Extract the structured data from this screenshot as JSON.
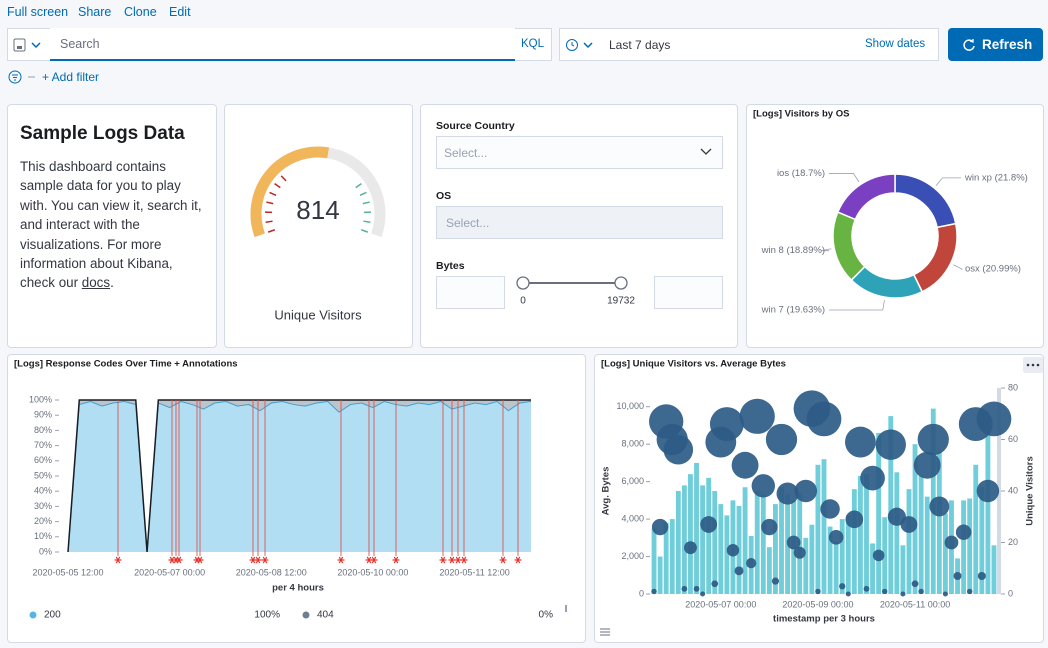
{
  "nav": [
    "Full screen",
    "Share",
    "Clone",
    "Edit"
  ],
  "query": {
    "placeholder": "Search",
    "language": "KQL"
  },
  "time": {
    "range": "Last 7 days",
    "toggle": "Show dates"
  },
  "refresh": "Refresh",
  "add_filter": "+ Add filter",
  "markdown": {
    "title": "Sample Logs Data",
    "text": "This dashboard contains sample data for you to play with. You can view it, search it, and interact with the visualizations. For more information about Kibana, check our ",
    "link": "docs",
    "end": "."
  },
  "gauge": {
    "value": 814,
    "label": "Unique Visitors",
    "range": [
      0,
      1500
    ]
  },
  "controls": {
    "country": {
      "label": "Source Country",
      "placeholder": "Select..."
    },
    "os": {
      "label": "OS",
      "placeholder": "Select..."
    },
    "bytes": {
      "label": "Bytes",
      "min": 0,
      "max": 19732
    }
  },
  "chart_data": [
    {
      "type": "area",
      "title": "[Logs] Response Codes Over Time + Annotations",
      "x_label": "per 4 hours",
      "categories": [
        "2020-05-05 12:00",
        null,
        null,
        null,
        null,
        null,
        null,
        null,
        null,
        "2020-05-07 00:00",
        null,
        null,
        null,
        null,
        null,
        null,
        null,
        null,
        "2020-05-08 12:00",
        null,
        null,
        null,
        null,
        null,
        null,
        null,
        null,
        "2020-05-10 00:00",
        null,
        null,
        null,
        null,
        null,
        null,
        null,
        null,
        "2020-05-11 12:00",
        null,
        null,
        null,
        null,
        null
      ],
      "series": [
        {
          "name": "200",
          "color": "#54b5e6",
          "line_color": "#3aa7dc",
          "legend_value": {
            "value": 100,
            "label": "100%"
          },
          "values": [
            0,
            97,
            99,
            96,
            98,
            99,
            97,
            0,
            98,
            95,
            99,
            97,
            94,
            98,
            99,
            96,
            97,
            93,
            98,
            99,
            97,
            96,
            98,
            99,
            92,
            97,
            98,
            95,
            99,
            97,
            96,
            98,
            97,
            99,
            94,
            96,
            98,
            97,
            99,
            93,
            98,
            99
          ]
        },
        {
          "name": "404",
          "color": "#6d7f8f",
          "line_color": "#1a1c21",
          "legend_value": {
            "value": 0,
            "label": "0%"
          },
          "values": [
            0,
            3,
            1,
            4,
            2,
            1,
            3,
            0,
            2,
            5,
            1,
            3,
            6,
            2,
            1,
            4,
            3,
            7,
            2,
            1,
            3,
            4,
            2,
            1,
            8,
            3,
            2,
            5,
            1,
            3,
            4,
            2,
            3,
            1,
            6,
            4,
            2,
            3,
            1,
            7,
            2,
            1
          ]
        }
      ],
      "ylim": [
        0,
        100
      ],
      "yticks": [
        {
          "value": 0,
          "label": "0%"
        },
        {
          "value": 10,
          "label": "10%"
        },
        {
          "value": 20,
          "label": "20%"
        },
        {
          "value": 30,
          "label": "30%"
        },
        {
          "value": 40,
          "label": "40%"
        },
        {
          "value": 50,
          "label": "50%"
        },
        {
          "value": 60,
          "label": "60%"
        },
        {
          "value": 70,
          "label": "70%"
        },
        {
          "value": 80,
          "label": "80%"
        },
        {
          "value": 90,
          "label": "90%"
        },
        {
          "value": 100,
          "label": "100%"
        }
      ],
      "stacked": true
    },
    {
      "type": "pie",
      "title": "[Logs] Visitors by OS",
      "donut": true,
      "values": [
        21.8,
        20.99,
        19.63,
        18.89,
        18.7
      ],
      "value_labels": [
        "win xp (21.8%)",
        "osx (20.99%)",
        "win 7 (19.63%)",
        "win 8 (18.89%)",
        "ios (18.7%)"
      ],
      "colors": [
        "#3a4fb5",
        "#c0453a",
        "#2ea3b8",
        "#67b443",
        "#7b3fc2"
      ]
    },
    {
      "type": "bar",
      "title": "[Logs] Unique Visitors vs. Average Bytes",
      "x_label": "timestamp per 3 hours",
      "y_label": "Avg. Bytes",
      "y2_label": "Unique Visitors",
      "categories": [
        null,
        null,
        null,
        null,
        null,
        null,
        null,
        null,
        null,
        null,
        null,
        "2020-05-07 00:00",
        null,
        null,
        null,
        null,
        null,
        null,
        null,
        null,
        null,
        null,
        null,
        null,
        null,
        null,
        null,
        "2020-05-09 00:00",
        null,
        null,
        null,
        null,
        null,
        null,
        null,
        null,
        null,
        null,
        null,
        null,
        null,
        null,
        null,
        "2020-05-11 00:00",
        null,
        null,
        null,
        null,
        null,
        null,
        null,
        null,
        null,
        null,
        null,
        null,
        null
      ],
      "series": [
        {
          "color": "#70cedb",
          "values": [
            3500,
            2000,
            3800,
            4000,
            5500,
            5800,
            6400,
            7000,
            5800,
            6200,
            5500,
            4800,
            4200,
            5000,
            4700,
            5700,
            3100,
            5500,
            5300,
            2500,
            4800,
            5700,
            5300,
            5000,
            5400,
            3000,
            3700,
            6900,
            7200,
            3600,
            2800,
            4000,
            4200,
            5600,
            6300,
            6400,
            2700,
            8600,
            4100,
            9500,
            6500,
            2600,
            5600,
            8000,
            6300,
            5200,
            9900,
            7600,
            4300,
            5000,
            1900,
            5000,
            5100,
            6900,
            5700,
            8600,
            2600
          ]
        },
        {
          "color": "#2d5b86",
          "axis": "y2",
          "mark": "bubble",
          "values": [
            1,
            26,
            67,
            60,
            56,
            2,
            18,
            2,
            0,
            27,
            4,
            59,
            66,
            17,
            9,
            50,
            12,
            69,
            42,
            26,
            5,
            60,
            39,
            20,
            16,
            40,
            72,
            1,
            68,
            33,
            22,
            3,
            0,
            29,
            59,
            2,
            45,
            15,
            1,
            58,
            30,
            0,
            27,
            4,
            1,
            50,
            60,
            34,
            0,
            20,
            7,
            24,
            1,
            66,
            7,
            40,
            68
          ]
        }
      ],
      "ylim": [
        0,
        11000
      ],
      "yticks": [
        0,
        {
          "value": 2000,
          "label": "2,000"
        },
        {
          "value": 4000,
          "label": "4,000"
        },
        {
          "value": 6000,
          "label": "6,000"
        },
        {
          "value": 8000,
          "label": "8,000"
        },
        {
          "value": 10000,
          "label": "10,000"
        }
      ],
      "y2lim": [
        0,
        80
      ],
      "y2ticks": [
        0,
        20,
        40,
        60,
        80
      ]
    }
  ]
}
